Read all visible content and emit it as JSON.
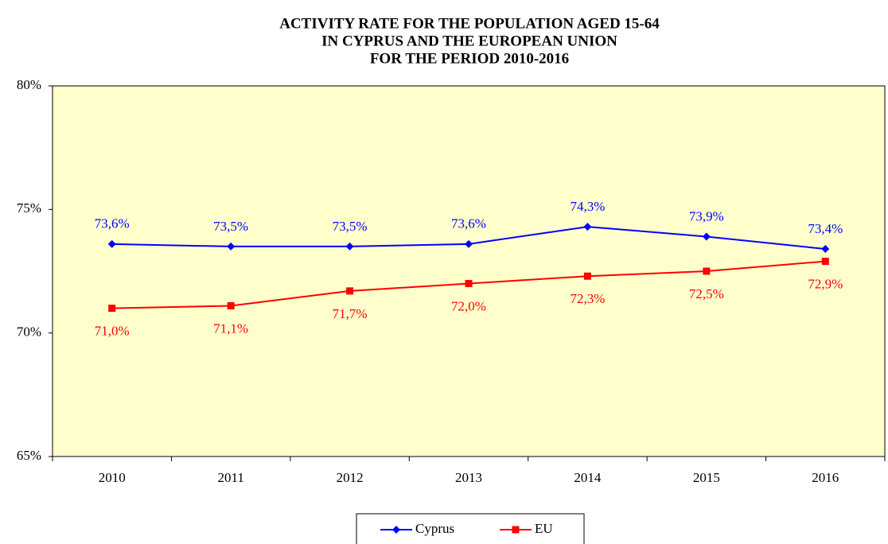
{
  "chart_data": {
    "type": "line",
    "title": [
      "ACTIVITY RATE FOR THE POPULATION AGED 15-64",
      "IN CYPRUS AND THE EUROPEAN UNION",
      "FOR THE PERIOD 2010-2016"
    ],
    "categories": [
      "2010",
      "2011",
      "2012",
      "2013",
      "2014",
      "2015",
      "2016"
    ],
    "series": [
      {
        "name": "Cyprus",
        "color": "#0000ff",
        "marker": "diamond",
        "label_position": "above",
        "values": [
          73.6,
          73.5,
          73.5,
          73.6,
          74.3,
          73.9,
          73.4
        ],
        "value_labels": [
          "73,6%",
          "73,5%",
          "73,5%",
          "73,6%",
          "74,3%",
          "73,9%",
          "73,4%"
        ]
      },
      {
        "name": "EU",
        "color": "#ff0000",
        "marker": "square",
        "label_position": "below",
        "values": [
          71.0,
          71.1,
          71.7,
          72.0,
          72.3,
          72.5,
          72.9
        ],
        "value_labels": [
          "71,0%",
          "71,1%",
          "71,7%",
          "72,0%",
          "72,3%",
          "72,5%",
          "72,9%"
        ]
      }
    ],
    "ylim": [
      65,
      80
    ],
    "yticks": [
      {
        "value": 65,
        "label": "65%"
      },
      {
        "value": 70,
        "label": "70%"
      },
      {
        "value": 75,
        "label": "75%"
      },
      {
        "value": 80,
        "label": "80%"
      }
    ],
    "plot_background": "#ffffcc",
    "legend": "bottom"
  }
}
